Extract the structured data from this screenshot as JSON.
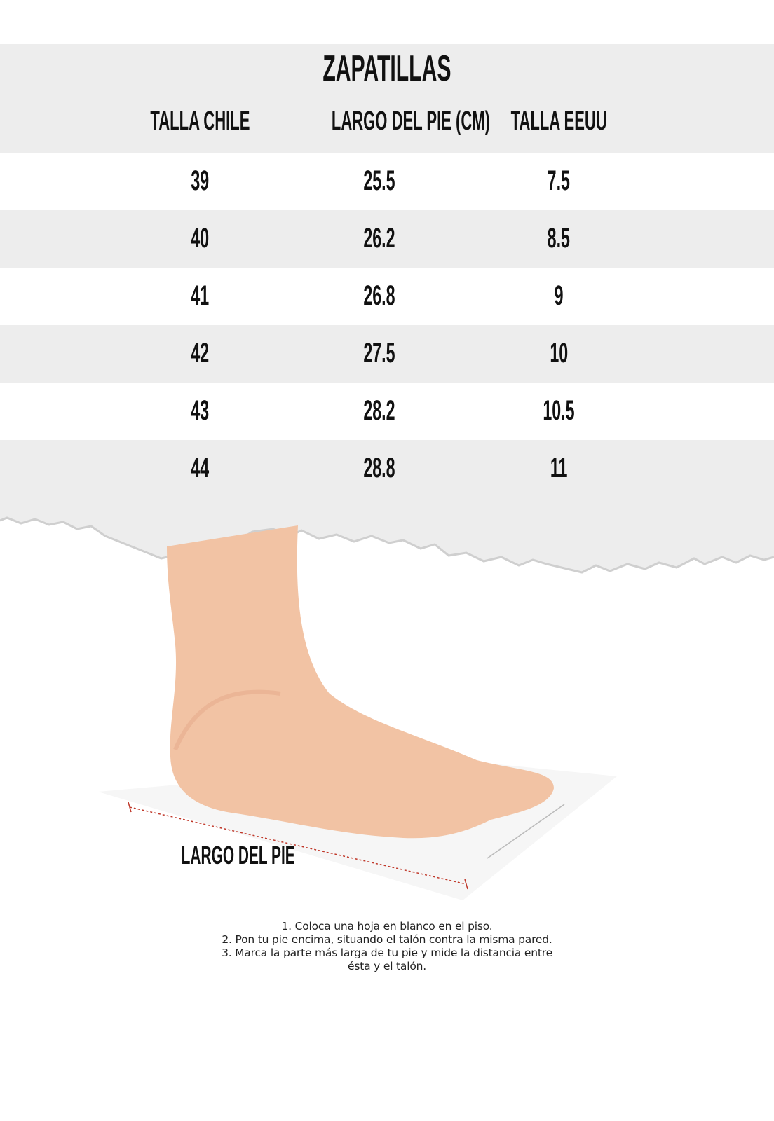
{
  "title": "ZAPATILLAS",
  "headers": [
    "TALLA CHILE",
    "LARGO DEL PIE (CM)",
    "TALLA EEUU"
  ],
  "rows": [
    [
      "39",
      "25.5",
      "7.5"
    ],
    [
      "40",
      "26.2",
      "8.5"
    ],
    [
      "41",
      "26.8",
      "9"
    ],
    [
      "42",
      "27.5",
      "10"
    ],
    [
      "43",
      "28.2",
      "10.5"
    ],
    [
      "44",
      "28.8",
      "11"
    ]
  ],
  "foot_label": "LARGO DEL PIE",
  "instructions": [
    "1. Coloca una hoja en blanco en el piso.",
    "2. Pon tu pie encima, situando el talón contra la misma pared.",
    "3. Marca la parte más larga de tu pie y mide la distancia entre",
    "ésta y el talón."
  ],
  "colors": {
    "band_gray": "#ededed",
    "measure_line": "#c0392b",
    "text": "#111111"
  }
}
